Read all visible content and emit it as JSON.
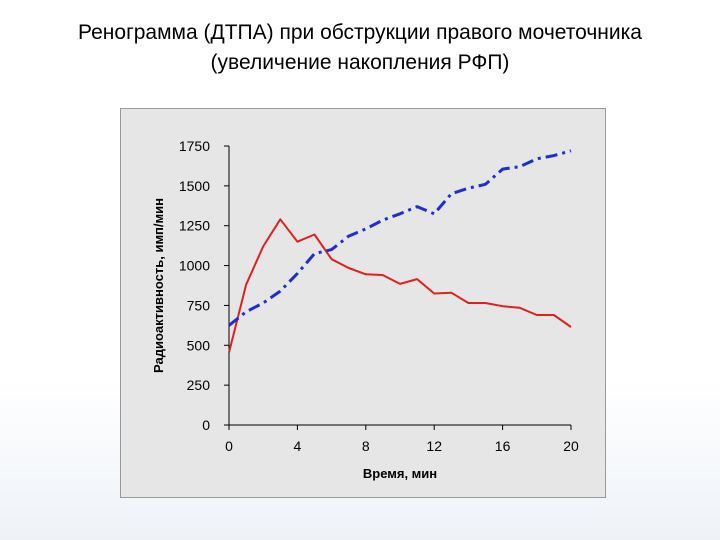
{
  "slide": {
    "title_line1": "Ренограмма (ДТПА) при обструкции правого мочеточника",
    "title_line2": "(увеличение накопления РФП)"
  },
  "chart_data": {
    "type": "line",
    "xlabel": "Время, мин",
    "ylabel": "Радиоактивность, имп/мин",
    "xlim": [
      0,
      20
    ],
    "ylim": [
      0,
      1750
    ],
    "xticks": [
      0,
      4,
      8,
      12,
      16,
      20
    ],
    "yticks": [
      0,
      250,
      500,
      750,
      1000,
      1250,
      1500,
      1750
    ],
    "grid": false,
    "legend": "none",
    "series": [
      {
        "color": "#e02020",
        "style": "solid",
        "x": [
          0,
          1,
          2,
          3,
          4,
          5,
          6,
          7,
          8,
          9,
          10,
          11,
          12,
          13,
          14,
          15,
          16,
          17,
          18,
          19,
          20
        ],
        "y": [
          455,
          880,
          1120,
          1290,
          1150,
          1195,
          1040,
          985,
          945,
          940,
          885,
          915,
          825,
          830,
          765,
          765,
          745,
          735,
          690,
          690,
          615
        ]
      },
      {
        "color": "#1f2fcf",
        "style": "dashed",
        "x": [
          0,
          1,
          2,
          3,
          4,
          5,
          6,
          7,
          8,
          9,
          10,
          11,
          12,
          13,
          14,
          15,
          16,
          17,
          18,
          19,
          20
        ],
        "y": [
          625,
          710,
          765,
          840,
          950,
          1075,
          1100,
          1185,
          1230,
          1285,
          1325,
          1370,
          1325,
          1450,
          1485,
          1510,
          1605,
          1620,
          1670,
          1690,
          1720
        ]
      }
    ]
  }
}
